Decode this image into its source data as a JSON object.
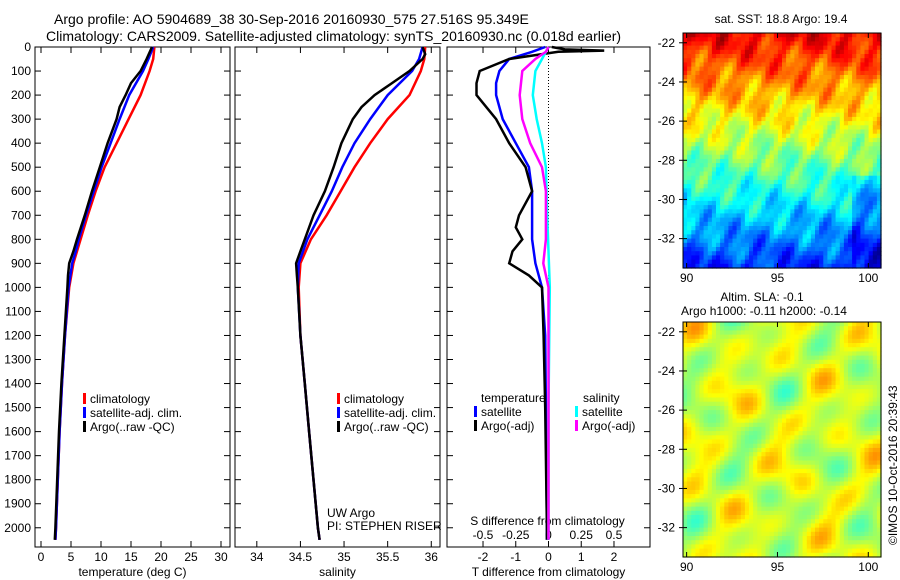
{
  "title": {
    "line1": "Argo profile: AO 5904689_38 30-Sep-2016 20160930_575 27.516S 95.349E",
    "line2": "Climatology: CARS2009. Satellite-adjusted climatology: synTS_20160930.nc (0.018d earlier)"
  },
  "credit": "©IMOS 10-Oct-2016 20:39:43",
  "colors": {
    "climatology": "#ff0000",
    "satellite": "#0000ff",
    "argo": "#000000",
    "sal_satellite": "#00ffff",
    "sal_argo": "#ff00ff"
  },
  "chart_data": [
    {
      "type": "line",
      "name": "temperature",
      "xlabel": "temperature (deg C)",
      "xlim": [
        -1,
        31.5
      ],
      "ylim": [
        0,
        2080
      ],
      "xticks": [
        0,
        5,
        10,
        15,
        20,
        25,
        30
      ],
      "yticks": [
        0,
        100,
        200,
        300,
        400,
        500,
        600,
        700,
        800,
        900,
        1000,
        1100,
        1200,
        1300,
        1400,
        1500,
        1600,
        1700,
        1800,
        1900,
        2000
      ],
      "legend": [
        "climatology",
        "satellite-adj. clim.",
        "Argo(..raw -QC)"
      ],
      "series": [
        {
          "name": "climatology",
          "color": "#ff0000",
          "depth": [
            0,
            50,
            100,
            200,
            300,
            400,
            500,
            600,
            700,
            800,
            850,
            900,
            1000,
            1200,
            1400,
            1600,
            1800,
            2000,
            2050
          ],
          "values": [
            18.9,
            18.7,
            18.1,
            16.6,
            14.6,
            12.6,
            10.6,
            9.1,
            7.8,
            6.6,
            6.0,
            5.4,
            4.7,
            4.0,
            3.5,
            3.1,
            2.8,
            2.5,
            2.4
          ]
        },
        {
          "name": "satellite-adj. clim.",
          "color": "#0000ff",
          "depth": [
            0,
            50,
            100,
            200,
            300,
            400,
            500,
            600,
            700,
            800,
            850,
            900,
            1000,
            1200,
            1400,
            1600,
            1800,
            2000,
            2050
          ],
          "values": [
            18.7,
            17.9,
            17.0,
            14.7,
            13.1,
            11.6,
            10.1,
            8.8,
            7.5,
            6.3,
            5.8,
            5.2,
            4.6,
            4.0,
            3.5,
            3.1,
            2.8,
            2.5,
            2.4
          ]
        },
        {
          "name": "Argo(..raw -QC)",
          "color": "#000000",
          "depth": [
            0,
            50,
            100,
            150,
            200,
            250,
            300,
            400,
            500,
            600,
            700,
            800,
            850,
            900,
            950,
            1000,
            1200,
            1400,
            1600,
            1800,
            2000,
            2050
          ],
          "values": [
            18.5,
            17.6,
            16.6,
            15.0,
            14.1,
            13.1,
            12.6,
            11.1,
            9.8,
            8.5,
            7.3,
            6.0,
            5.4,
            4.7,
            4.5,
            4.4,
            3.9,
            3.4,
            3.0,
            2.7,
            2.4,
            2.3
          ]
        }
      ]
    },
    {
      "type": "line",
      "name": "salinity",
      "xlabel": "salinity",
      "xlim": [
        33.75,
        36.1
      ],
      "ylim": [
        0,
        2080
      ],
      "xticks": [
        34,
        34.5,
        35,
        35.5,
        36
      ],
      "legend": [
        "climatology",
        "satellite-adj. clim.",
        "Argo(..raw -QC)"
      ],
      "annotation": [
        "UW Argo",
        "PI: STEPHEN RISER"
      ],
      "series": [
        {
          "name": "climatology",
          "color": "#ff0000",
          "depth": [
            0,
            50,
            100,
            200,
            300,
            400,
            500,
            600,
            700,
            800,
            900,
            1000,
            1200,
            1400,
            1600,
            1800,
            2000,
            2050
          ],
          "values": [
            35.93,
            35.92,
            35.88,
            35.75,
            35.5,
            35.3,
            35.12,
            34.96,
            34.8,
            34.62,
            34.5,
            34.48,
            34.5,
            34.55,
            34.6,
            34.65,
            34.7,
            34.72
          ]
        },
        {
          "name": "satellite-adj. clim.",
          "color": "#0000ff",
          "depth": [
            0,
            50,
            100,
            200,
            300,
            400,
            500,
            600,
            700,
            800,
            900,
            1000,
            1200,
            1400,
            1600,
            1800,
            2000,
            2050
          ],
          "values": [
            35.9,
            35.86,
            35.78,
            35.5,
            35.3,
            35.12,
            34.98,
            34.86,
            34.72,
            34.58,
            34.48,
            34.47,
            34.5,
            34.55,
            34.6,
            34.65,
            34.7,
            34.72
          ]
        },
        {
          "name": "Argo(..raw -QC)",
          "color": "#000000",
          "depth": [
            0,
            30,
            50,
            100,
            150,
            200,
            250,
            300,
            400,
            500,
            600,
            700,
            800,
            850,
            900,
            950,
            1000,
            1200,
            1400,
            1600,
            1800,
            2000,
            2050
          ],
          "values": [
            35.9,
            35.93,
            35.9,
            35.75,
            35.55,
            35.35,
            35.2,
            35.1,
            34.97,
            34.88,
            34.78,
            34.65,
            34.55,
            34.5,
            34.45,
            34.46,
            34.47,
            34.5,
            34.55,
            34.6,
            34.65,
            34.7,
            34.72
          ]
        }
      ]
    },
    {
      "type": "line",
      "name": "differences",
      "xlabel": "T difference from climatology",
      "x2label": "S difference from climatology",
      "xlim": [
        -3.1,
        3.1
      ],
      "x2lim": [
        -0.775,
        0.775
      ],
      "ylim": [
        0,
        2080
      ],
      "xticks": [
        -2,
        -1,
        0,
        1,
        2
      ],
      "x2ticks": [
        "-0.5",
        "-0.25",
        "0",
        "0.25",
        "0.5"
      ],
      "legend": {
        "temperature": "temperature",
        "salinity": "salinity",
        "t_sat": "satellite",
        "t_argo": "Argo(-adj)",
        "s_sat": "satellite",
        "s_argo": "Argo(-adj)"
      },
      "series": [
        {
          "name": "T satellite",
          "axis": "T",
          "color": "#0000ff",
          "depth": [
            0,
            20,
            50,
            100,
            150,
            200,
            300,
            400,
            500,
            600,
            700,
            800,
            900,
            1000,
            1200,
            1500,
            2000,
            2050
          ],
          "values": [
            -0.1,
            -0.5,
            -1.2,
            -1.5,
            -1.6,
            -1.6,
            -1.4,
            -1.0,
            -0.6,
            -0.5,
            -0.5,
            -0.5,
            -0.4,
            -0.2,
            -0.1,
            -0.08,
            -0.05,
            -0.05
          ]
        },
        {
          "name": "T Argo(-adj)",
          "axis": "T",
          "color": "#000000",
          "depth": [
            0,
            10,
            15,
            20,
            50,
            100,
            150,
            200,
            250,
            300,
            400,
            500,
            600,
            700,
            750,
            800,
            850,
            900,
            950,
            1000,
            1200,
            1500,
            2000,
            2050
          ],
          "values": [
            0.1,
            0.5,
            1.7,
            0.3,
            -1.2,
            -2.1,
            -2.2,
            -2.2,
            -1.9,
            -1.6,
            -1.2,
            -0.7,
            -0.5,
            -0.9,
            -1.0,
            -0.8,
            -1.1,
            -1.2,
            -0.6,
            -0.2,
            -0.15,
            -0.1,
            -0.05,
            -0.05
          ]
        },
        {
          "name": "S satellite",
          "axis": "S",
          "color": "#00ffff",
          "depth": [
            0,
            50,
            100,
            200,
            300,
            400,
            500,
            700,
            1000,
            1500,
            2000,
            2050
          ],
          "values": [
            0.0,
            -0.05,
            -0.1,
            -0.12,
            -0.09,
            -0.05,
            -0.02,
            -0.01,
            0.01,
            0.0,
            0.0,
            0.0
          ]
        },
        {
          "name": "S Argo(-adj)",
          "axis": "S",
          "color": "#ff00ff",
          "depth": [
            0,
            20,
            50,
            100,
            200,
            300,
            400,
            500,
            600,
            800,
            900,
            1000,
            1500,
            2000,
            2050
          ],
          "values": [
            0.0,
            -0.02,
            -0.1,
            -0.2,
            -0.22,
            -0.2,
            -0.14,
            -0.05,
            -0.02,
            -0.02,
            -0.04,
            0.0,
            0.0,
            0.0,
            0.0
          ]
        }
      ]
    },
    {
      "type": "heatmap",
      "name": "sst-map",
      "title": "sat. SST: 18.8  Argo: 19.4",
      "xlim": [
        89.8,
        100.7
      ],
      "ylim": [
        -33.5,
        -21.5
      ],
      "xticks": [
        90,
        95,
        100
      ],
      "yticks": [
        -22,
        -24,
        -26,
        -28,
        -30,
        -32
      ],
      "value_range": [
        17,
        23
      ]
    },
    {
      "type": "heatmap",
      "name": "sla-map",
      "title": [
        "Altim. SLA: -0.1",
        "Argo h1000: -0.11  h2000: -0.14"
      ],
      "xlim": [
        89.8,
        100.7
      ],
      "ylim": [
        -33.5,
        -21.5
      ],
      "xticks": [
        90,
        95,
        100
      ],
      "yticks": [
        -22,
        -24,
        -26,
        -28,
        -30,
        -32
      ]
    }
  ]
}
